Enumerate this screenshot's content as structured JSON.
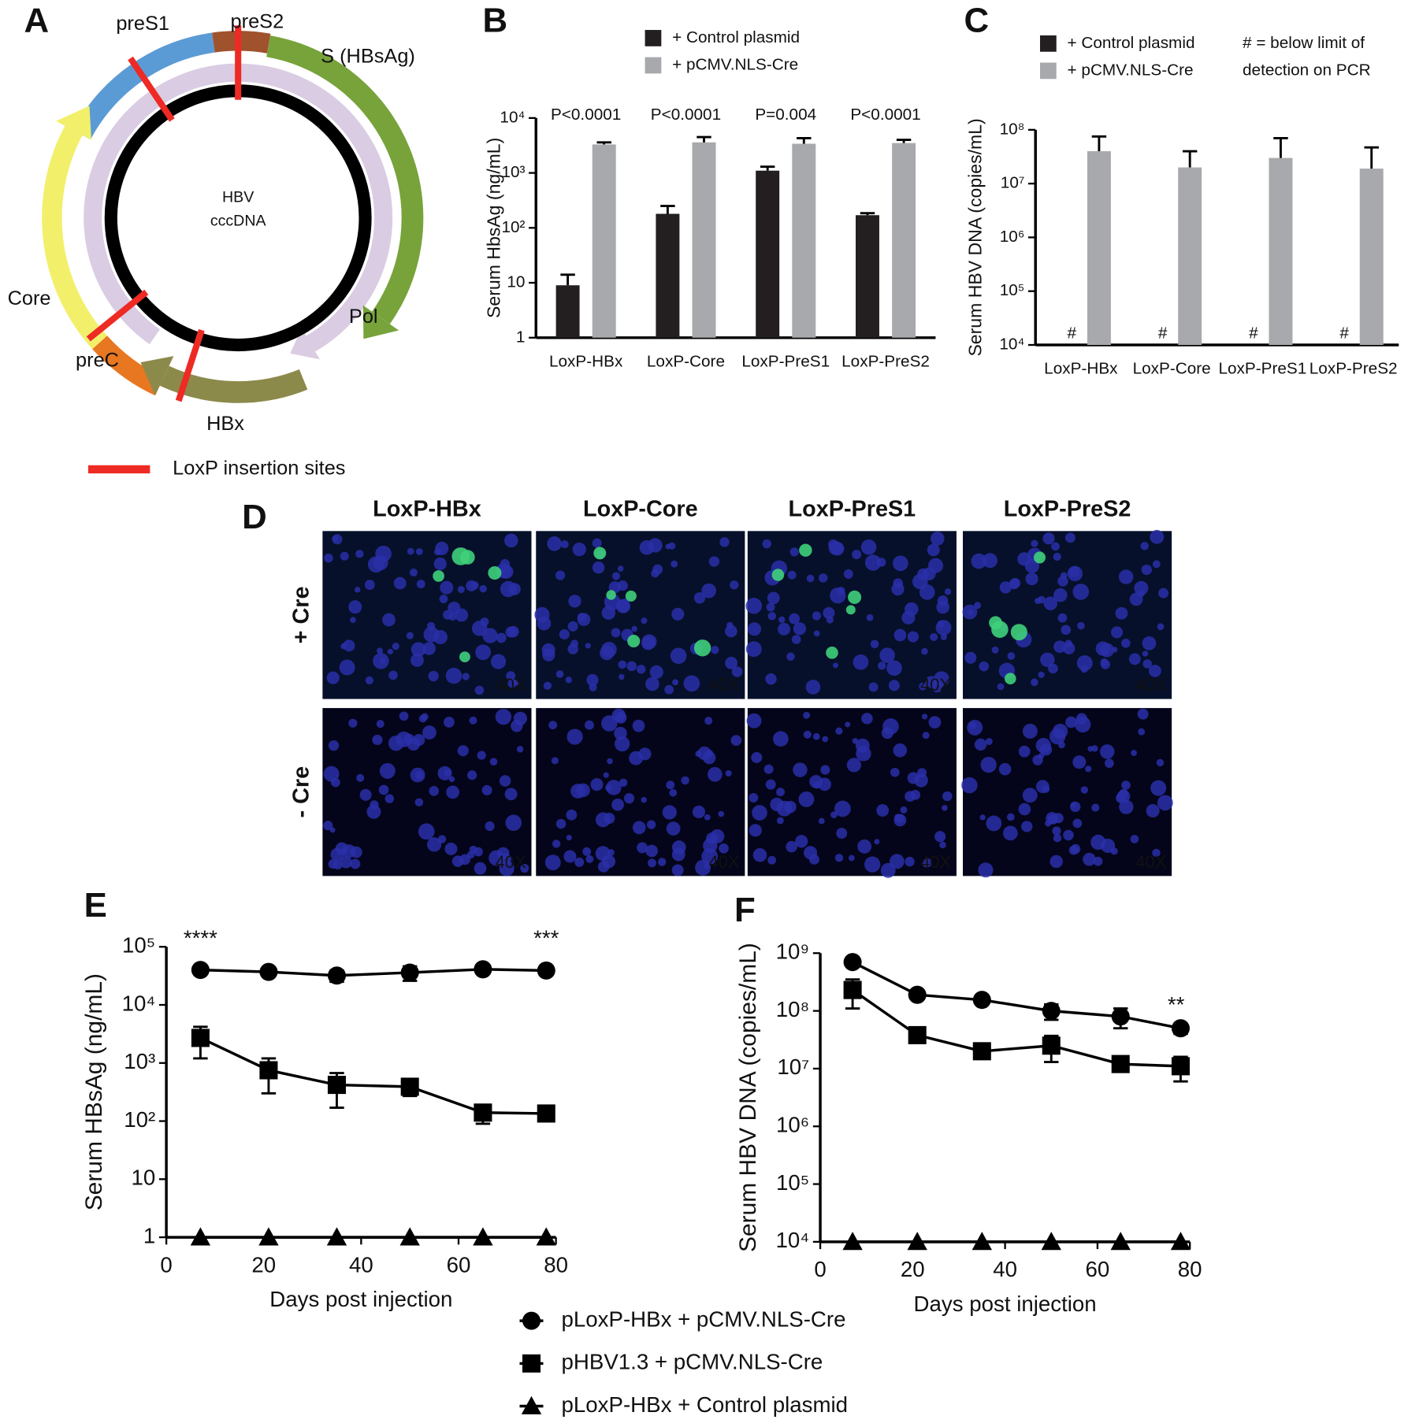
{
  "panel_labels": [
    "A",
    "B",
    "C",
    "D",
    "E",
    "F"
  ],
  "diagram": {
    "labels": [
      "preS1",
      "preS2",
      "S (HBsAg)",
      "Core",
      "preC",
      "Pol",
      "HBx"
    ],
    "center": [
      "HBV",
      "cccDNA"
    ],
    "legend": "LoxP insertion sites"
  },
  "micrographs": {
    "columns": [
      "LoxP-HBx",
      "LoxP-Core",
      "LoxP-PreS1",
      "LoxP-PreS2"
    ],
    "rows": [
      "+ Cre",
      "- Cre"
    ],
    "magnification": "40X"
  },
  "chart_data": [
    {
      "type": "bar",
      "y_label": "Serum HbsAg (ng/mL)",
      "log_scale": true,
      "categories": [
        "LoxP-HBx",
        "LoxP-Core",
        "LoxP-PreS1",
        "LoxP-PreS2"
      ],
      "series": [
        {
          "name": "+ Control plasmid",
          "color": "#231f20",
          "values": [
            9,
            180,
            1100,
            170
          ],
          "errors": [
            5,
            70,
            200,
            15
          ]
        },
        {
          "name": "+ pCMV.NLS-Cre",
          "color": "#a7a9ac",
          "values": [
            3300,
            3600,
            3400,
            3500
          ],
          "errors": [
            300,
            900,
            900,
            500
          ]
        }
      ],
      "p_values": [
        "P<0.0001",
        "P<0.0001",
        "P=0.004",
        "P<0.0001"
      ],
      "ylim": [
        1,
        10000
      ],
      "yticks": [
        1,
        10,
        {
          "value": 100,
          "label": "10²"
        },
        {
          "value": 1000,
          "label": "10³"
        },
        {
          "value": 10000,
          "label": "10⁴"
        }
      ]
    },
    {
      "type": "bar",
      "y_label": "Serum HBV DNA (copies/mL)",
      "log_scale": true,
      "categories": [
        "LoxP-HBx",
        "LoxP-Core",
        "LoxP-PreS1",
        "LoxP-PreS2"
      ],
      "series": [
        {
          "name": "+ Control plasmid",
          "color": "#231f20",
          "values": [
            null,
            null,
            null,
            null
          ]
        },
        {
          "name": "+ pCMV.NLS-Cre",
          "color": "#a7a9ac",
          "values": [
            40000000,
            20000000,
            30000000,
            19000000
          ],
          "errors": [
            35000000,
            20000000,
            40000000,
            28000000
          ]
        }
      ],
      "markers": [
        "#",
        "#",
        "#",
        "#"
      ],
      "note": [
        "# = below limit of",
        "detection on PCR"
      ],
      "ylim": [
        10000,
        100000000
      ],
      "yticks": [
        {
          "value": 10000,
          "label": "10⁴"
        },
        {
          "value": 100000,
          "label": "10⁵"
        },
        {
          "value": 1000000,
          "label": "10⁶"
        },
        {
          "value": 10000000,
          "label": "10⁷"
        },
        {
          "value": 100000000,
          "label": "10⁸"
        }
      ]
    },
    {
      "type": "line",
      "y_label": "Serum HBsAg (ng/mL)",
      "x_label": "Days post injection",
      "log_scale": true,
      "x": [
        7,
        21,
        35,
        50,
        65,
        78
      ],
      "series": [
        {
          "name": "pLoxP-HBx + pCMV.NLS-Cre",
          "marker": "circle",
          "color": "#000000",
          "values": [
            40000,
            37000,
            32000,
            36000,
            41000,
            39000
          ],
          "errors": [
            3000,
            3000,
            7000,
            10000,
            4000,
            3000
          ]
        },
        {
          "name": "pHBV1.3 + pCMV.NLS-Cre",
          "marker": "square",
          "color": "#000000",
          "values": [
            2700,
            750,
            420,
            390,
            140,
            135
          ],
          "errors": [
            1500,
            450,
            250,
            120,
            50,
            20
          ]
        },
        {
          "name": "pLoxP-HBx + Control plasmid",
          "marker": "triangle",
          "color": "#000000",
          "values": [
            1,
            1,
            1,
            1,
            1,
            1
          ]
        }
      ],
      "annotations": [
        {
          "x": 7,
          "y": 100000,
          "text": "****"
        },
        {
          "x": 78,
          "y": 100000,
          "text": "***"
        }
      ],
      "xlim": [
        0,
        80
      ],
      "xticks": [
        0,
        20,
        40,
        60,
        80
      ],
      "ylim": [
        1,
        100000
      ],
      "yticks": [
        1,
        10,
        {
          "value": 100,
          "label": "10²"
        },
        {
          "value": 1000,
          "label": "10³"
        },
        {
          "value": 10000,
          "label": "10⁴"
        },
        {
          "value": 100000,
          "label": "10⁵"
        }
      ]
    },
    {
      "type": "line",
      "y_label": "Serum HBV DNA (copies/mL)",
      "x_label": "Days post injection",
      "log_scale": true,
      "x": [
        7,
        21,
        35,
        50,
        65,
        78
      ],
      "series": [
        {
          "marker": "circle",
          "color": "#000000",
          "values": [
            700000000,
            190000000,
            155000000,
            100000000,
            80000000,
            50000000
          ],
          "errors": [
            100000000,
            20000000,
            20000000,
            30000000,
            30000000,
            10000000
          ]
        },
        {
          "marker": "square",
          "color": "#000000",
          "values": [
            230000000,
            38000000,
            20000000,
            25000000,
            12000000,
            11000000
          ],
          "errors": [
            120000000,
            5000000,
            3000000,
            12000000,
            2000000,
            5000000
          ]
        },
        {
          "marker": "triangle",
          "color": "#000000",
          "values": [
            10000,
            10000,
            10000,
            10000,
            10000,
            10000
          ]
        }
      ],
      "annotations": [
        {
          "x": 77,
          "y": 90000000,
          "text": "**"
        }
      ],
      "xlim": [
        0,
        80
      ],
      "xticks": [
        0,
        20,
        40,
        60,
        80
      ],
      "ylim": [
        10000,
        1000000000
      ],
      "yticks": [
        {
          "value": 10000,
          "label": "10⁴"
        },
        {
          "value": 100000,
          "label": "10⁵"
        },
        {
          "value": 1000000,
          "label": "10⁶"
        },
        {
          "value": 10000000,
          "label": "10⁷"
        },
        {
          "value": 100000000,
          "label": "10⁸"
        },
        {
          "value": 1000000000,
          "label": "10⁹"
        }
      ]
    }
  ]
}
